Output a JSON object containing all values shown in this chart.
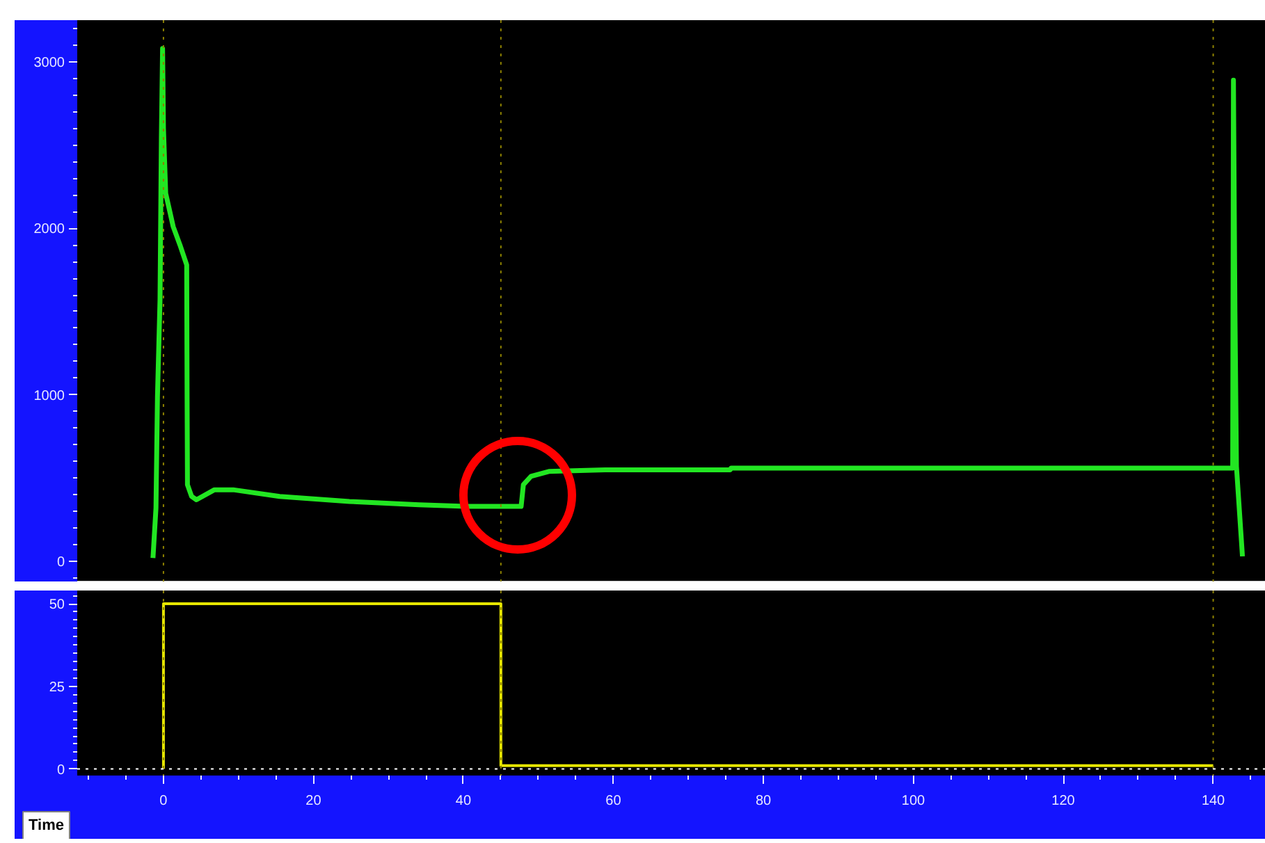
{
  "chart_data": [
    {
      "type": "line",
      "xlim": [
        -11.5,
        147
      ],
      "ylim": [
        -125,
        3250
      ],
      "yticks": [
        0,
        1000,
        2000,
        3000
      ],
      "tick_labels": "y",
      "series": [
        {
          "color": "#22e622",
          "x": [
            -1.4,
            -1.0,
            -0.8,
            -0.46,
            -0.28,
            -0.12,
            0.0,
            0.3,
            1.3,
            2.2,
            3.1,
            3.15,
            3.2,
            3.75,
            4.4,
            6.8,
            9.3,
            15.5,
            24.8,
            34.1,
            40.3,
            47.7,
            48.0,
            49.0,
            51.4,
            58.9,
            75.6,
            75.7,
            119,
            119.1,
            142.6,
            142.7,
            142.9,
            143.1,
            143.9
          ],
          "values": [
            20,
            320,
            990,
            1570,
            2540,
            3080,
            2600,
            2210,
            2010,
            1900,
            1780,
            1000,
            460,
            390,
            370,
            430,
            430,
            390,
            360,
            340,
            330,
            330,
            460,
            510,
            540,
            550,
            550,
            560,
            560,
            560,
            560,
            2890,
            1500,
            570,
            30
          ]
        }
      ],
      "ref_lines": [
        {
          "axis": "x",
          "value": 0,
          "color": "#8c8000",
          "line_style": "dotted"
        },
        {
          "axis": "x",
          "value": 45,
          "color": "#8c8000",
          "line_style": "dotted"
        },
        {
          "axis": "x",
          "value": 140,
          "color": "#8c8000",
          "line_style": "dotted"
        }
      ]
    },
    {
      "type": "line",
      "xlabel": "Time",
      "xlim": [
        -11.5,
        147
      ],
      "xticks": [
        0,
        20,
        40,
        60,
        80,
        100,
        120,
        140
      ],
      "ylim": [
        -2,
        54
      ],
      "yticks": [
        0,
        25,
        50
      ],
      "series": [
        {
          "color": "#e6e600",
          "x": [
            0,
            0,
            45,
            45,
            140
          ],
          "values": [
            0,
            50,
            50,
            1,
            1
          ]
        }
      ],
      "ref_lines": [
        {
          "axis": "x",
          "value": 0,
          "color": "#8c8000",
          "line_style": "dotted"
        },
        {
          "axis": "x",
          "value": 45,
          "color": "#8c8000",
          "line_style": "dotted"
        },
        {
          "axis": "x",
          "value": 140,
          "color": "#8c8000",
          "line_style": "dotted"
        },
        {
          "axis": "y",
          "value": 0,
          "color": "#ffffff",
          "line_style": "dotted"
        }
      ]
    }
  ]
}
